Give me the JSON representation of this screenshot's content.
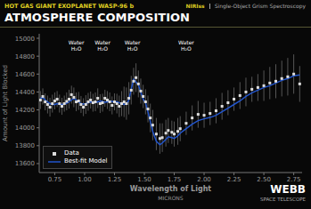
{
  "chart_data": {
    "type": "line",
    "title": "ATMOSPHERE COMPOSITION",
    "subtitle": "HOT GAS GIANT EXOPLANET WASP-96 b",
    "header": [
      "NIRIss",
      "Single-Object Grism Spectroscopy"
    ],
    "footer": [
      "WEBB",
      "SPACE TELESCOPE"
    ],
    "xlabel": "Wavelength of Light",
    "xlabel_unit": "MICRONS",
    "ylabel": "Amount of Light Blocked",
    "xlim": [
      0.62,
      2.82
    ],
    "xticks": [
      0.75,
      {
        "value": 1.0,
        "label": "1.00"
      },
      1.25,
      {
        "value": 1.5,
        "label": "1.50"
      },
      1.75,
      {
        "value": 2.0,
        "label": "2.00"
      },
      2.25,
      {
        "value": 2.5,
        "label": "2.50"
      },
      2.75
    ],
    "ylim": [
      13500,
      15050
    ],
    "yticks": [
      13600,
      13800,
      14000,
      14200,
      14400,
      14600,
      14800,
      15000
    ],
    "grid": false,
    "legend": "lower left",
    "annotations": [
      {
        "text": "Water\nH₂O",
        "x": 0.93,
        "y": 14860
      },
      {
        "text": "Water\nH₂O",
        "x": 1.15,
        "y": 14860
      },
      {
        "text": "Water\nH₂O",
        "x": 1.4,
        "y": 14860
      },
      {
        "text": "Water\nH₂O",
        "x": 1.85,
        "y": 14860
      }
    ],
    "series": [
      {
        "name": "Data",
        "type": "scatter",
        "marker": "square",
        "color": "#dddddd",
        "x": [
          0.63,
          0.65,
          0.67,
          0.69,
          0.71,
          0.73,
          0.75,
          0.77,
          0.79,
          0.81,
          0.83,
          0.85,
          0.87,
          0.89,
          0.91,
          0.93,
          0.95,
          0.97,
          0.99,
          1.01,
          1.03,
          1.05,
          1.07,
          1.09,
          1.11,
          1.13,
          1.15,
          1.17,
          1.19,
          1.21,
          1.23,
          1.25,
          1.27,
          1.29,
          1.31,
          1.33,
          1.35,
          1.37,
          1.39,
          1.41,
          1.43,
          1.45,
          1.47,
          1.49,
          1.51,
          1.53,
          1.55,
          1.57,
          1.6,
          1.63,
          1.65,
          1.68,
          1.7,
          1.73,
          1.75,
          1.78,
          1.8,
          1.85,
          1.9,
          1.95,
          2.0,
          2.05,
          2.1,
          2.15,
          2.2,
          2.25,
          2.3,
          2.35,
          2.4,
          2.45,
          2.5,
          2.55,
          2.6,
          2.65,
          2.7,
          2.75,
          2.8
        ],
        "values": [
          14310,
          14350,
          14290,
          14260,
          14230,
          14270,
          14300,
          14320,
          14270,
          14240,
          14270,
          14295,
          14320,
          14370,
          14340,
          14290,
          14300,
          14260,
          14230,
          14260,
          14290,
          14310,
          14280,
          14290,
          14330,
          14270,
          14280,
          14330,
          14310,
          14290,
          14250,
          14290,
          14270,
          14240,
          14270,
          14290,
          14270,
          14330,
          14420,
          14520,
          14560,
          14490,
          14410,
          14350,
          14290,
          14210,
          14110,
          14030,
          13930,
          13880,
          13890,
          13940,
          13970,
          13950,
          13930,
          13960,
          13990,
          14050,
          14110,
          14150,
          14140,
          14160,
          14190,
          14240,
          14280,
          14320,
          14360,
          14400,
          14430,
          14450,
          14470,
          14500,
          14520,
          14550,
          14570,
          14600,
          14490
        ],
        "errors": [
          100,
          90,
          95,
          100,
          105,
          100,
          95,
          90,
          100,
          95,
          90,
          100,
          105,
          100,
          110,
          105,
          100,
          95,
          100,
          105,
          100,
          95,
          100,
          105,
          110,
          105,
          100,
          95,
          100,
          105,
          100,
          95,
          110,
          120,
          140,
          170,
          180,
          180,
          160,
          150,
          160,
          150,
          140,
          130,
          140,
          150,
          160,
          170,
          180,
          170,
          160,
          150,
          140,
          130,
          140,
          150,
          140,
          130,
          140,
          150,
          140,
          130,
          140,
          150,
          140,
          130,
          150,
          160,
          140,
          150,
          170,
          180,
          190,
          200,
          210,
          220,
          200
        ]
      },
      {
        "name": "Best-fit Model",
        "type": "line",
        "color": "#2255cc",
        "x": [
          0.63,
          0.65,
          0.67,
          0.69,
          0.71,
          0.73,
          0.75,
          0.77,
          0.79,
          0.81,
          0.83,
          0.85,
          0.87,
          0.89,
          0.91,
          0.93,
          0.95,
          0.97,
          0.99,
          1.01,
          1.03,
          1.05,
          1.07,
          1.09,
          1.11,
          1.13,
          1.15,
          1.17,
          1.19,
          1.21,
          1.23,
          1.25,
          1.27,
          1.29,
          1.31,
          1.33,
          1.35,
          1.37,
          1.39,
          1.41,
          1.43,
          1.45,
          1.47,
          1.49,
          1.51,
          1.53,
          1.55,
          1.57,
          1.6,
          1.63,
          1.65,
          1.68,
          1.7,
          1.73,
          1.75,
          1.78,
          1.8,
          1.85,
          1.9,
          1.95,
          2.0,
          2.05,
          2.1,
          2.15,
          2.2,
          2.25,
          2.3,
          2.35,
          2.4,
          2.45,
          2.5,
          2.55,
          2.6,
          2.65,
          2.7,
          2.75,
          2.8
        ],
        "values": [
          14330,
          14340,
          14310,
          14290,
          14270,
          14260,
          14260,
          14270,
          14265,
          14260,
          14265,
          14275,
          14290,
          14310,
          14330,
          14310,
          14290,
          14270,
          14265,
          14270,
          14280,
          14290,
          14285,
          14280,
          14290,
          14300,
          14295,
          14285,
          14290,
          14300,
          14295,
          14285,
          14290,
          14280,
          14275,
          14260,
          14265,
          14310,
          14430,
          14540,
          14510,
          14480,
          14400,
          14320,
          14280,
          14180,
          14070,
          13960,
          13850,
          13810,
          13830,
          13870,
          13900,
          13890,
          13880,
          13910,
          13940,
          13990,
          14040,
          14080,
          14100,
          14115,
          14140,
          14180,
          14220,
          14260,
          14300,
          14350,
          14390,
          14420,
          14450,
          14470,
          14500,
          14530,
          14550,
          14580,
          14590
        ]
      }
    ]
  }
}
